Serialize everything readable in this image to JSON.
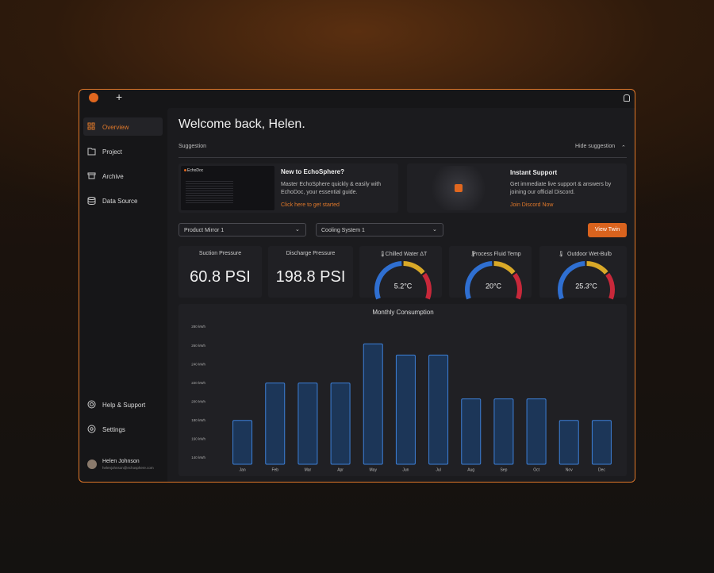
{
  "app": {
    "nav": [
      "Overview",
      "Project",
      "Archive",
      "Data Source"
    ],
    "bottom_nav": [
      "Help & Support",
      "Settings"
    ],
    "user": {
      "name": "Helen Johnson",
      "email": "helenjohnson@echosphere.com"
    }
  },
  "header": {
    "title": "Welcome back, Helen.",
    "section": "Suggestion",
    "toggle": "Hide suggestion"
  },
  "cards": [
    {
      "brand": "EchoDoc",
      "title": "New to EchoSphere?",
      "text": "Master EchoSphere quickly & easily with EchoDoc, your essential guide.",
      "link": "Click here to get started"
    },
    {
      "title": "Instant Support",
      "text": "Get immediate live support & answers by joining our official Discord.",
      "link": "Join Discord Now"
    }
  ],
  "controls": {
    "selects": [
      "Product Mirror 1",
      "Cooling System 1"
    ],
    "button": "View Twin"
  },
  "metrics": [
    {
      "label": "Suction Pressure",
      "value": "60.8 PSI"
    },
    {
      "label": "Discharge Pressure",
      "value": "198.8 PSI"
    }
  ],
  "gauges": [
    {
      "label": "Chilled Water ΔT",
      "value": "5.2°C"
    },
    {
      "label": "Process Fluid Temp",
      "value": "20°C"
    },
    {
      "label": "Outdoor Wet-Bulb",
      "value": "25.3°C"
    }
  ],
  "chart_data": {
    "type": "bar",
    "title": "Monthly Consumption",
    "categories": [
      "Jan",
      "Feb",
      "Mar",
      "Apr",
      "May",
      "Jun",
      "Jul",
      "Aug",
      "Sep",
      "Oct",
      "Nov",
      "Dec"
    ],
    "values": [
      180,
      220,
      220,
      220,
      262,
      250,
      250,
      203,
      203,
      203,
      180,
      180
    ],
    "color": "#1c3658",
    "edge_color": "#3d7fd6",
    "ylim": [
      133,
      286
    ],
    "yticks": [
      {
        "value": 140,
        "label": "140 kWh"
      },
      {
        "value": 160,
        "label": "160 kWh"
      },
      {
        "value": 180,
        "label": "180 kWh"
      },
      {
        "value": 200,
        "label": "200 kWh"
      },
      {
        "value": 220,
        "label": "220 kWh"
      },
      {
        "value": 240,
        "label": "240 kWh"
      },
      {
        "value": 260,
        "label": "260 kWh"
      },
      {
        "value": 280,
        "label": "280 kWh"
      }
    ],
    "grid": false
  }
}
